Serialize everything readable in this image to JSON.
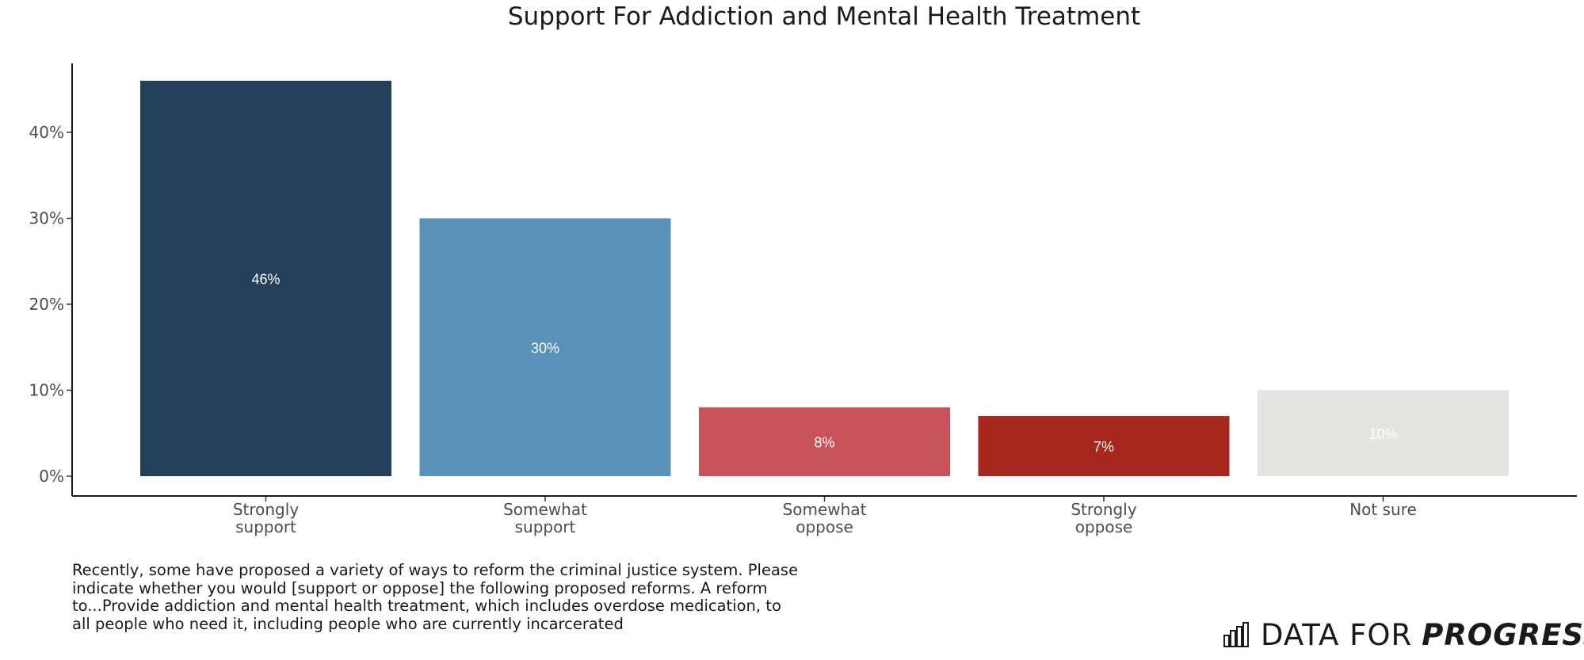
{
  "chart_data": {
    "type": "bar",
    "title": "Support For Addiction and Mental Health Treatment",
    "categories": [
      [
        "Strongly",
        "support"
      ],
      [
        "Somewhat",
        "support"
      ],
      [
        "Somewhat",
        "oppose"
      ],
      [
        "Strongly",
        "oppose"
      ],
      [
        "Not sure"
      ]
    ],
    "values": [
      46,
      30,
      8,
      7,
      10
    ],
    "value_labels": [
      "46%",
      "30%",
      "8%",
      "7%",
      "10%"
    ],
    "bar_colors": [
      "#233f59",
      "#5a91b8",
      "#c6535a",
      "#a6271d",
      "#e4e4e0"
    ],
    "value_label_colors": [
      "#ffffff",
      "#ffffff",
      "#ffffff",
      "#ffffff",
      "#ffffff"
    ],
    "ylim": [
      0,
      46
    ],
    "yticks": [
      0,
      10,
      20,
      30,
      40
    ],
    "ytick_labels": [
      "0%",
      "10%",
      "20%",
      "30%",
      "40%"
    ],
    "xlabel": "",
    "ylabel": "",
    "grid": false,
    "legend": "none"
  },
  "caption": "Recently, some have proposed a variety of ways to reform the criminal justice system. Please indicate whether you would [support or oppose] the following proposed reforms. A reform to...Provide addiction and mental health treatment, which includes overdose medication, to all people who need it, including people who are currently incarcerated",
  "logo": {
    "text_regular": "DATA FOR",
    "text_bold": "PROGRESS",
    "icon": "bar-chart-icon"
  }
}
